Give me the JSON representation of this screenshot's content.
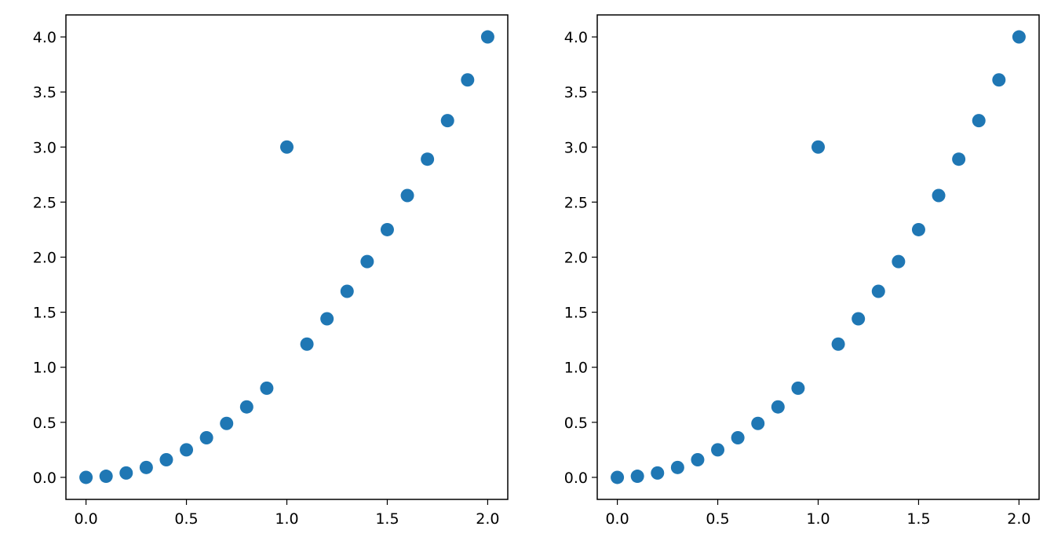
{
  "colors": {
    "marker": "#1f77b4",
    "frame": "#000000",
    "background": "#ffffff"
  },
  "chart_data": [
    {
      "type": "scatter",
      "title": "",
      "xlabel": "",
      "ylabel": "",
      "grid": false,
      "xlim": [
        -0.1,
        2.1
      ],
      "ylim": [
        -0.2,
        4.2
      ],
      "xticks": [
        0.0,
        0.5,
        1.0,
        1.5,
        2.0
      ],
      "xtick_labels": [
        "0.0",
        "0.5",
        "1.0",
        "1.5",
        "2.0"
      ],
      "yticks": [
        0.0,
        0.5,
        1.0,
        1.5,
        2.0,
        2.5,
        3.0,
        3.5,
        4.0
      ],
      "ytick_labels": [
        "0.0",
        "0.5",
        "1.0",
        "1.5",
        "2.0",
        "2.5",
        "3.0",
        "3.5",
        "4.0"
      ],
      "series": [
        {
          "x": [
            0.0,
            0.1,
            0.2,
            0.3,
            0.4,
            0.5,
            0.6,
            0.7,
            0.8,
            0.9,
            1.0,
            1.1,
            1.2,
            1.3,
            1.4,
            1.5,
            1.6,
            1.7,
            1.8,
            1.9,
            2.0
          ],
          "y": [
            0.0,
            0.01,
            0.04,
            0.09,
            0.16,
            0.25,
            0.36,
            0.49,
            0.64,
            0.81,
            3.0,
            1.21,
            1.44,
            1.69,
            1.96,
            2.25,
            2.56,
            2.89,
            3.24,
            3.61,
            4.0
          ]
        }
      ]
    },
    {
      "type": "scatter",
      "title": "",
      "xlabel": "",
      "ylabel": "",
      "grid": false,
      "xlim": [
        -0.1,
        2.1
      ],
      "ylim": [
        -0.2,
        4.2
      ],
      "xticks": [
        0.0,
        0.5,
        1.0,
        1.5,
        2.0
      ],
      "xtick_labels": [
        "0.0",
        "0.5",
        "1.0",
        "1.5",
        "2.0"
      ],
      "yticks": [
        0.0,
        0.5,
        1.0,
        1.5,
        2.0,
        2.5,
        3.0,
        3.5,
        4.0
      ],
      "ytick_labels": [
        "0.0",
        "0.5",
        "1.0",
        "1.5",
        "2.0",
        "2.5",
        "3.0",
        "3.5",
        "4.0"
      ],
      "series": [
        {
          "x": [
            0.0,
            0.1,
            0.2,
            0.3,
            0.4,
            0.5,
            0.6,
            0.7,
            0.8,
            0.9,
            1.0,
            1.1,
            1.2,
            1.3,
            1.4,
            1.5,
            1.6,
            1.7,
            1.8,
            1.9,
            2.0
          ],
          "y": [
            0.0,
            0.01,
            0.04,
            0.09,
            0.16,
            0.25,
            0.36,
            0.49,
            0.64,
            0.81,
            3.0,
            1.21,
            1.44,
            1.69,
            1.96,
            2.25,
            2.56,
            2.89,
            3.24,
            3.61,
            4.0
          ]
        }
      ]
    }
  ]
}
